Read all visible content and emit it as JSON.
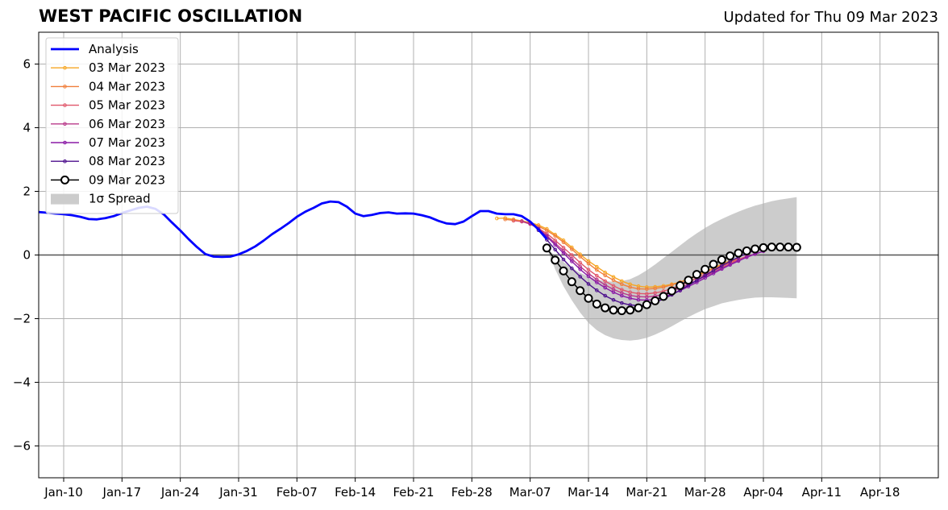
{
  "chart_data": {
    "type": "line",
    "title": "WEST PACIFIC OSCILLATION",
    "subtitle": "Updated for Thu 09 Mar 2023",
    "xlabel": "",
    "ylabel": "",
    "ylim": [
      -7,
      7
    ],
    "xlim": [
      "2023-01-07",
      "2023-04-25"
    ],
    "grid": true,
    "legend_position": "top-left",
    "y_ticks": [
      -6,
      -4,
      -2,
      0,
      2,
      4,
      6
    ],
    "y_tick_labels": [
      "−6",
      "−4",
      "−2",
      "0",
      "2",
      "4",
      "6"
    ],
    "x_ticks": [
      "2023-01-10",
      "2023-01-17",
      "2023-01-24",
      "2023-01-31",
      "2023-02-07",
      "2023-02-14",
      "2023-02-21",
      "2023-02-28",
      "2023-03-07",
      "2023-03-14",
      "2023-03-21",
      "2023-03-28",
      "2023-04-04",
      "2023-04-11",
      "2023-04-18"
    ],
    "x_tick_labels": [
      "Jan-10",
      "Jan-17",
      "Jan-24",
      "Jan-31",
      "Feb-07",
      "Feb-14",
      "Feb-21",
      "Feb-28",
      "Mar-07",
      "Mar-14",
      "Mar-21",
      "Mar-28",
      "Apr-04",
      "Apr-11",
      "Apr-18"
    ],
    "analysis": {
      "name": "Analysis",
      "color": "#0000ff",
      "points": [
        [
          "2023-01-07",
          1.35
        ],
        [
          "2023-01-08",
          1.33
        ],
        [
          "2023-01-09",
          1.3
        ],
        [
          "2023-01-10",
          1.28
        ],
        [
          "2023-01-11",
          1.25
        ],
        [
          "2023-01-12",
          1.2
        ],
        [
          "2023-01-13",
          1.13
        ],
        [
          "2023-01-14",
          1.12
        ],
        [
          "2023-01-15",
          1.16
        ],
        [
          "2023-01-16",
          1.22
        ],
        [
          "2023-01-17",
          1.32
        ],
        [
          "2023-01-18",
          1.4
        ],
        [
          "2023-01-19",
          1.48
        ],
        [
          "2023-01-20",
          1.52
        ],
        [
          "2023-01-21",
          1.45
        ],
        [
          "2023-01-22",
          1.28
        ],
        [
          "2023-01-23",
          1.02
        ],
        [
          "2023-01-24",
          0.77
        ],
        [
          "2023-01-25",
          0.5
        ],
        [
          "2023-01-26",
          0.25
        ],
        [
          "2023-01-27",
          0.03
        ],
        [
          "2023-01-28",
          -0.05
        ],
        [
          "2023-01-29",
          -0.06
        ],
        [
          "2023-01-30",
          -0.05
        ],
        [
          "2023-01-31",
          0.02
        ],
        [
          "2023-02-01",
          0.13
        ],
        [
          "2023-02-02",
          0.27
        ],
        [
          "2023-02-03",
          0.45
        ],
        [
          "2023-02-04",
          0.65
        ],
        [
          "2023-02-05",
          0.82
        ],
        [
          "2023-02-06",
          1.0
        ],
        [
          "2023-02-07",
          1.2
        ],
        [
          "2023-02-08",
          1.36
        ],
        [
          "2023-02-09",
          1.48
        ],
        [
          "2023-02-10",
          1.62
        ],
        [
          "2023-02-11",
          1.68
        ],
        [
          "2023-02-12",
          1.66
        ],
        [
          "2023-02-13",
          1.52
        ],
        [
          "2023-02-14",
          1.3
        ],
        [
          "2023-02-15",
          1.22
        ],
        [
          "2023-02-16",
          1.26
        ],
        [
          "2023-02-17",
          1.32
        ],
        [
          "2023-02-18",
          1.34
        ],
        [
          "2023-02-19",
          1.3
        ],
        [
          "2023-02-20",
          1.31
        ],
        [
          "2023-02-21",
          1.3
        ],
        [
          "2023-02-22",
          1.25
        ],
        [
          "2023-02-23",
          1.18
        ],
        [
          "2023-02-24",
          1.07
        ],
        [
          "2023-02-25",
          0.99
        ],
        [
          "2023-02-26",
          0.97
        ],
        [
          "2023-02-27",
          1.05
        ],
        [
          "2023-02-28",
          1.22
        ],
        [
          "2023-03-01",
          1.38
        ],
        [
          "2023-03-02",
          1.38
        ],
        [
          "2023-03-03",
          1.3
        ],
        [
          "2023-03-04",
          1.28
        ],
        [
          "2023-03-05",
          1.28
        ],
        [
          "2023-03-06",
          1.22
        ],
        [
          "2023-03-07",
          1.05
        ],
        [
          "2023-03-08",
          0.8
        ],
        [
          "2023-03-09",
          0.5
        ]
      ]
    },
    "forecasts": [
      {
        "name": "03 Mar 2023",
        "color": "#f6a623",
        "start": "2023-03-03",
        "values": [
          1.15,
          1.16,
          1.12,
          1.07,
          1.02,
          0.94,
          0.82,
          0.64,
          0.46,
          0.24,
          0.02,
          -0.19,
          -0.37,
          -0.55,
          -0.69,
          -0.82,
          -0.92,
          -0.98,
          -1.01,
          -1.0,
          -0.97,
          -0.92,
          -0.85,
          -0.75,
          -0.64,
          -0.52,
          -0.41,
          -0.29,
          -0.18
        ]
      },
      {
        "name": "04 Mar 2023",
        "color": "#f07f3c",
        "start": "2023-03-04",
        "values": [
          1.12,
          1.09,
          1.06,
          1.0,
          0.9,
          0.77,
          0.6,
          0.4,
          0.18,
          -0.05,
          -0.27,
          -0.47,
          -0.64,
          -0.79,
          -0.92,
          -1.01,
          -1.06,
          -1.07,
          -1.05,
          -1.01,
          -0.94,
          -0.86,
          -0.77,
          -0.66,
          -0.55,
          -0.43,
          -0.32,
          -0.21,
          -0.11
        ]
      },
      {
        "name": "05 Mar 2023",
        "color": "#e0566a",
        "start": "2023-03-05",
        "values": [
          1.08,
          1.05,
          0.97,
          0.84,
          0.67,
          0.46,
          0.23,
          0.0,
          -0.24,
          -0.46,
          -0.65,
          -0.82,
          -0.97,
          -1.09,
          -1.17,
          -1.21,
          -1.22,
          -1.19,
          -1.14,
          -1.05,
          -0.96,
          -0.85,
          -0.73,
          -0.61,
          -0.49,
          -0.37,
          -0.25,
          -0.14,
          -0.04
        ]
      },
      {
        "name": "06 Mar 2023",
        "color": "#b8398a",
        "start": "2023-03-06",
        "values": [
          1.06,
          0.98,
          0.82,
          0.61,
          0.37,
          0.13,
          -0.12,
          -0.36,
          -0.58,
          -0.77,
          -0.94,
          -1.08,
          -1.19,
          -1.27,
          -1.31,
          -1.32,
          -1.29,
          -1.23,
          -1.14,
          -1.04,
          -0.92,
          -0.8,
          -0.67,
          -0.54,
          -0.41,
          -0.29,
          -0.17,
          -0.06,
          0.04
        ]
      },
      {
        "name": "07 Mar 2023",
        "color": "#8a1aa6",
        "start": "2023-03-07",
        "values": [
          1.0,
          0.82,
          0.58,
          0.32,
          0.06,
          -0.2,
          -0.45,
          -0.67,
          -0.86,
          -1.03,
          -1.17,
          -1.28,
          -1.36,
          -1.41,
          -1.42,
          -1.39,
          -1.32,
          -1.23,
          -1.12,
          -0.99,
          -0.86,
          -0.72,
          -0.58,
          -0.44,
          -0.31,
          -0.19,
          -0.07,
          0.03,
          0.12
        ]
      },
      {
        "name": "08 Mar 2023",
        "color": "#4b0e8c",
        "start": "2023-03-08",
        "values": [
          0.78,
          0.48,
          0.17,
          -0.14,
          -0.42,
          -0.68,
          -0.91,
          -1.11,
          -1.28,
          -1.41,
          -1.51,
          -1.57,
          -1.59,
          -1.56,
          -1.49,
          -1.38,
          -1.25,
          -1.11,
          -0.95,
          -0.8,
          -0.64,
          -0.49,
          -0.34,
          -0.2,
          -0.07,
          0.05,
          0.15,
          0.23,
          0.28
        ]
      }
    ],
    "forecast_latest": {
      "name": "09 Mar 2023",
      "color": "#000000",
      "marker_fill": "#ffffff",
      "start": "2023-03-09",
      "values": [
        0.22,
        -0.16,
        -0.5,
        -0.84,
        -1.12,
        -1.36,
        -1.54,
        -1.66,
        -1.73,
        -1.75,
        -1.73,
        -1.66,
        -1.56,
        -1.44,
        -1.3,
        -1.13,
        -0.96,
        -0.79,
        -0.61,
        -0.45,
        -0.29,
        -0.15,
        -0.03,
        0.06,
        0.13,
        0.19,
        0.23,
        0.25,
        0.25,
        0.25,
        0.24
      ]
    },
    "spread": {
      "name": "1σ Spread",
      "color": "#cccccc",
      "start": "2023-03-09",
      "upper": [
        0.2,
        -0.02,
        -0.22,
        -0.4,
        -0.56,
        -0.68,
        -0.77,
        -0.82,
        -0.84,
        -0.82,
        -0.76,
        -0.64,
        -0.48,
        -0.3,
        -0.1,
        0.1,
        0.3,
        0.5,
        0.68,
        0.85,
        1.0,
        1.13,
        1.25,
        1.36,
        1.46,
        1.55,
        1.62,
        1.69,
        1.74,
        1.78,
        1.82
      ],
      "lower": [
        0.2,
        -0.45,
        -0.98,
        -1.42,
        -1.81,
        -2.13,
        -2.36,
        -2.52,
        -2.62,
        -2.67,
        -2.69,
        -2.66,
        -2.6,
        -2.5,
        -2.38,
        -2.24,
        -2.09,
        -1.95,
        -1.82,
        -1.7,
        -1.61,
        -1.52,
        -1.46,
        -1.41,
        -1.37,
        -1.34,
        -1.33,
        -1.33,
        -1.34,
        -1.35,
        -1.36
      ]
    },
    "legend": [
      "Analysis",
      "03 Mar 2023",
      "04 Mar 2023",
      "05 Mar 2023",
      "06 Mar 2023",
      "07 Mar 2023",
      "08 Mar 2023",
      "09 Mar 2023",
      "1σ Spread"
    ]
  }
}
